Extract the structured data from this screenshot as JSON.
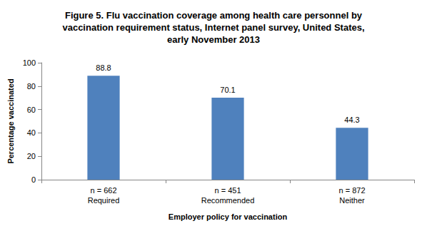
{
  "chart_data": {
    "type": "bar",
    "title": "Figure 5. Flu vaccination coverage among health care personnel by\nvaccination requirement status, Internet panel survey, United States,\nearly November 2013",
    "x_label": "Employer policy for vaccination",
    "y_label": "Percentage vaccinated",
    "categories": [
      "n = 662\nRequired",
      "n = 451\nRecommended",
      "n = 872\nNeither"
    ],
    "values": [
      88.8,
      70.1,
      44.3
    ],
    "color": "#4f81bd",
    "ylim": [
      0,
      100
    ],
    "yticks": [
      0,
      20,
      40,
      60,
      80,
      100
    ],
    "grid": false,
    "data_labels": true
  }
}
